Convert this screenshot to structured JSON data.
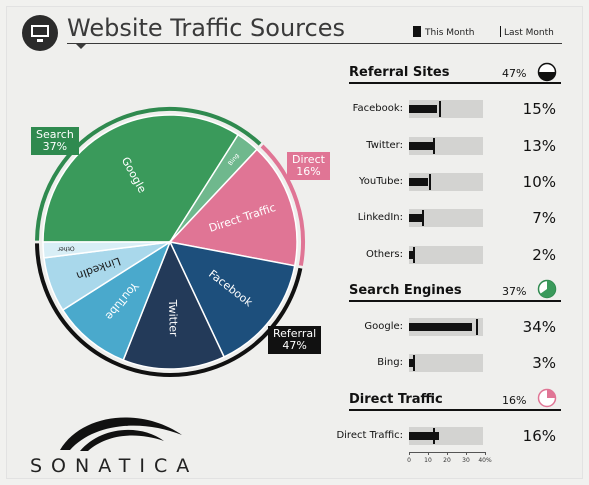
{
  "header": {
    "title": "Website Traffic Sources",
    "legend_this_month": "This Month",
    "legend_last_month": "Last Month",
    "icon": "monitor-icon"
  },
  "colors": {
    "search": "#3a9a5b",
    "search_dark": "#2f8a4f",
    "direct": "#e07595",
    "referral_dark": "#111111",
    "facebook": "#1d4f7c",
    "twitter": "#233a59",
    "youtube": "#4aa9cc",
    "linkedin": "#a9d8eb",
    "other": "#d8eef6",
    "bing": "#6fb88d"
  },
  "chart_data": {
    "type": "pie",
    "title": "Website Traffic Sources",
    "groups": [
      {
        "name": "Search",
        "value": 37,
        "label": "Search\n37%"
      },
      {
        "name": "Direct",
        "value": 16,
        "label": "Direct\n16%"
      },
      {
        "name": "Referral",
        "value": 47,
        "label": "Referral\n47%"
      }
    ],
    "slices": [
      {
        "name": "Google",
        "value": 34,
        "group": "Search"
      },
      {
        "name": "Bing",
        "value": 3,
        "group": "Search"
      },
      {
        "name": "Direct Traffic",
        "value": 16,
        "group": "Direct"
      },
      {
        "name": "Facebook",
        "value": 15,
        "group": "Referral"
      },
      {
        "name": "Twitter",
        "value": 13,
        "group": "Referral"
      },
      {
        "name": "YouTube",
        "value": 10,
        "group": "Referral"
      },
      {
        "name": "LinkedIn",
        "value": 7,
        "group": "Referral"
      },
      {
        "name": "Other",
        "value": 2,
        "group": "Referral"
      }
    ]
  },
  "callouts": {
    "search": "Search\n37%",
    "direct": "Direct\n16%",
    "referral": "Referral\n47%"
  },
  "sections": [
    {
      "title": "Referral Sites",
      "percent": "47%",
      "icon": "referral-pie-icon",
      "rows": [
        {
          "label": "Facebook:",
          "value": 15,
          "pct": "15%",
          "last_month": 16
        },
        {
          "label": "Twitter:",
          "value": 13,
          "pct": "13%",
          "last_month": 13
        },
        {
          "label": "YouTube:",
          "value": 10,
          "pct": "10%",
          "last_month": 11
        },
        {
          "label": "LinkedIn:",
          "value": 7,
          "pct": "7%",
          "last_month": 7
        },
        {
          "label": "Others:",
          "value": 2,
          "pct": "2%",
          "last_month": 2
        }
      ]
    },
    {
      "title": "Search Engines",
      "percent": "37%",
      "icon": "search-pie-icon",
      "rows": [
        {
          "label": "Google:",
          "value": 34,
          "pct": "34%",
          "last_month": 36
        },
        {
          "label": "Bing:",
          "value": 3,
          "pct": "3%",
          "last_month": 2
        }
      ]
    },
    {
      "title": "Direct Traffic",
      "percent": "16%",
      "icon": "direct-pie-icon",
      "rows": [
        {
          "label": "Direct Traffic:",
          "value": 16,
          "pct": "16%",
          "last_month": 13
        }
      ]
    }
  ],
  "scale": {
    "ticks": [
      "0",
      "10",
      "20",
      "30",
      "40%"
    ],
    "max": 40
  },
  "brand": {
    "name": "SONATICA"
  }
}
